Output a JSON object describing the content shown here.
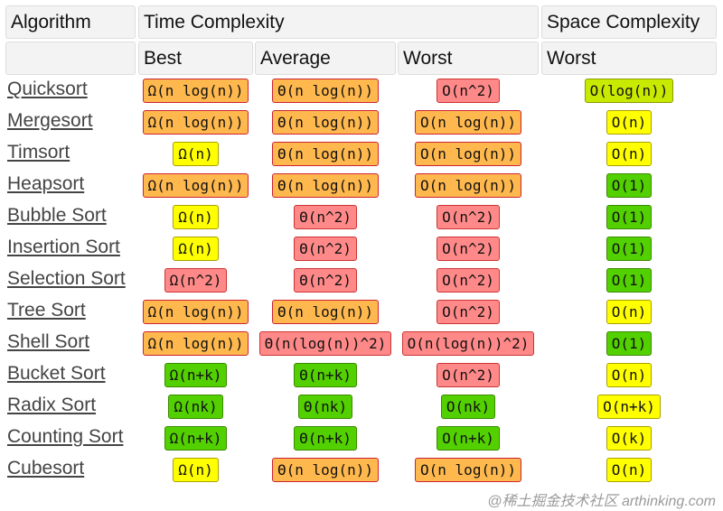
{
  "header": {
    "algorithm": "Algorithm",
    "time": "Time Complexity",
    "space": "Space Complexity",
    "best": "Best",
    "average": "Average",
    "worst": "Worst",
    "space_worst": "Worst"
  },
  "colors": {
    "orange": "#ffb84d",
    "red": "#ff8989",
    "green": "#53d000",
    "yellow": "#ffff00",
    "yellowgreen": "#c8ea00"
  },
  "rows": [
    {
      "name": "Quicksort",
      "best": [
        "Ω(n log(n))",
        "orange"
      ],
      "avg": [
        "Θ(n log(n))",
        "orange"
      ],
      "worst": [
        "O(n^2)",
        "red"
      ],
      "space": [
        "O(log(n))",
        "yellowgreen"
      ]
    },
    {
      "name": "Mergesort",
      "best": [
        "Ω(n log(n))",
        "orange"
      ],
      "avg": [
        "Θ(n log(n))",
        "orange"
      ],
      "worst": [
        "O(n log(n))",
        "orange"
      ],
      "space": [
        "O(n)",
        "yellow"
      ]
    },
    {
      "name": "Timsort",
      "best": [
        "Ω(n)",
        "yellow"
      ],
      "avg": [
        "Θ(n log(n))",
        "orange"
      ],
      "worst": [
        "O(n log(n))",
        "orange"
      ],
      "space": [
        "O(n)",
        "yellow"
      ]
    },
    {
      "name": "Heapsort",
      "best": [
        "Ω(n log(n))",
        "orange"
      ],
      "avg": [
        "Θ(n log(n))",
        "orange"
      ],
      "worst": [
        "O(n log(n))",
        "orange"
      ],
      "space": [
        "O(1)",
        "green"
      ]
    },
    {
      "name": "Bubble Sort",
      "best": [
        "Ω(n)",
        "yellow"
      ],
      "avg": [
        "Θ(n^2)",
        "red"
      ],
      "worst": [
        "O(n^2)",
        "red"
      ],
      "space": [
        "O(1)",
        "green"
      ]
    },
    {
      "name": "Insertion Sort",
      "best": [
        "Ω(n)",
        "yellow"
      ],
      "avg": [
        "Θ(n^2)",
        "red"
      ],
      "worst": [
        "O(n^2)",
        "red"
      ],
      "space": [
        "O(1)",
        "green"
      ]
    },
    {
      "name": "Selection Sort",
      "best": [
        "Ω(n^2)",
        "red"
      ],
      "avg": [
        "Θ(n^2)",
        "red"
      ],
      "worst": [
        "O(n^2)",
        "red"
      ],
      "space": [
        "O(1)",
        "green"
      ]
    },
    {
      "name": "Tree Sort",
      "best": [
        "Ω(n log(n))",
        "orange"
      ],
      "avg": [
        "Θ(n log(n))",
        "orange"
      ],
      "worst": [
        "O(n^2)",
        "red"
      ],
      "space": [
        "O(n)",
        "yellow"
      ]
    },
    {
      "name": "Shell Sort",
      "best": [
        "Ω(n log(n))",
        "orange"
      ],
      "avg": [
        "Θ(n(log(n))^2)",
        "red"
      ],
      "worst": [
        "O(n(log(n))^2)",
        "red"
      ],
      "space": [
        "O(1)",
        "green"
      ]
    },
    {
      "name": "Bucket Sort",
      "best": [
        "Ω(n+k)",
        "green"
      ],
      "avg": [
        "Θ(n+k)",
        "green"
      ],
      "worst": [
        "O(n^2)",
        "red"
      ],
      "space": [
        "O(n)",
        "yellow"
      ]
    },
    {
      "name": "Radix Sort",
      "best": [
        "Ω(nk)",
        "green"
      ],
      "avg": [
        "Θ(nk)",
        "green"
      ],
      "worst": [
        "O(nk)",
        "green"
      ],
      "space": [
        "O(n+k)",
        "yellow"
      ]
    },
    {
      "name": "Counting Sort",
      "best": [
        "Ω(n+k)",
        "green"
      ],
      "avg": [
        "Θ(n+k)",
        "green"
      ],
      "worst": [
        "O(n+k)",
        "green"
      ],
      "space": [
        "O(k)",
        "yellow"
      ]
    },
    {
      "name": "Cubesort",
      "best": [
        "Ω(n)",
        "yellow"
      ],
      "avg": [
        "Θ(n log(n))",
        "orange"
      ],
      "worst": [
        "O(n log(n))",
        "orange"
      ],
      "space": [
        "O(n)",
        "yellow"
      ]
    }
  ],
  "watermark": "@稀土掘金技术社区 arthinking.com"
}
